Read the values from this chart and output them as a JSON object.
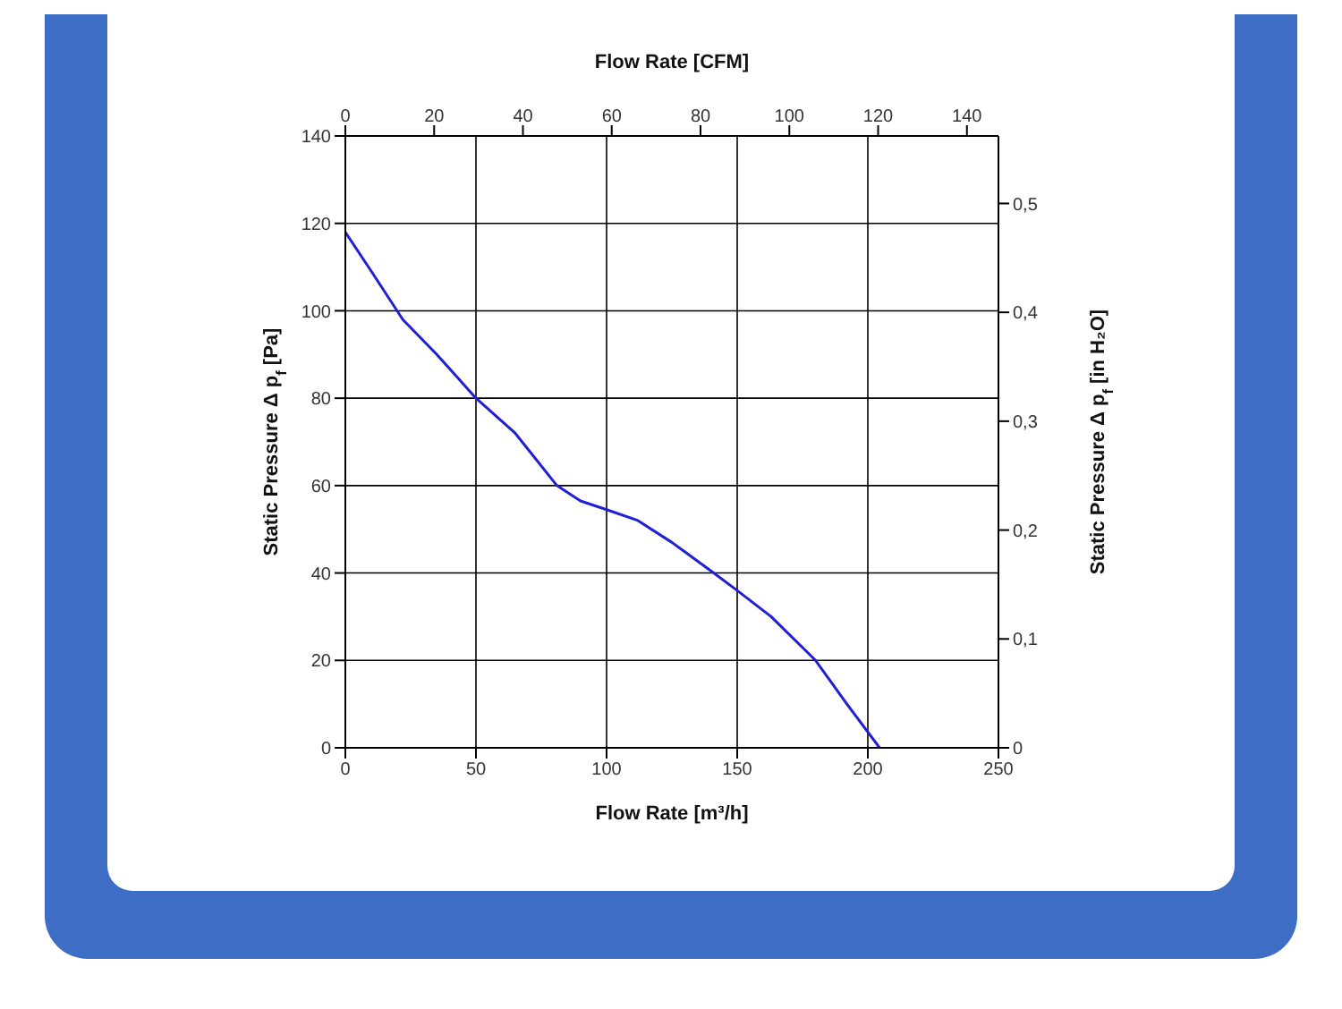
{
  "chart_data": {
    "type": "line",
    "xlabel": "Flow Rate [m³/h]",
    "ylabel": "Static Pressure Δ p$_{f}$ [Pa]",
    "y2label": "Static Pressure Δ p$_{f}$ [in H₂O]",
    "x2label": "Flow Rate [CFM]",
    "x": [
      0,
      10,
      22,
      35,
      50,
      65,
      81,
      90,
      100,
      112,
      125,
      141,
      150,
      163,
      180,
      192,
      204.5
    ],
    "series": [
      {
        "color": "#1f1fd6",
        "values": [
          118,
          109,
          98,
          90,
          80,
          72,
          60,
          56.5,
          54.5,
          52,
          47,
          40,
          36,
          30,
          20,
          10,
          0
        ]
      }
    ],
    "xlim": [
      0,
      250
    ],
    "xticks": [
      0,
      50,
      100,
      150,
      200,
      250
    ],
    "ylim": [
      0,
      140
    ],
    "yticks": [
      0,
      20,
      40,
      60,
      80,
      100,
      120,
      140
    ],
    "x2lim": [
      0,
      147.1
    ],
    "x2ticks": [
      0,
      20,
      40,
      60,
      80,
      100,
      120,
      140
    ],
    "y2lim": [
      0,
      0.562
    ],
    "y2ticks": [
      {
        "value": 0,
        "label": "0"
      },
      {
        "value": 0.1,
        "label": "0,1"
      },
      {
        "value": 0.2,
        "label": "0,2"
      },
      {
        "value": 0.3,
        "label": "0,3"
      },
      {
        "value": 0.4,
        "label": "0,4"
      },
      {
        "value": 0.5,
        "label": "0,5"
      }
    ],
    "grid": true,
    "legend": false,
    "marker": "none",
    "line_style": "solid"
  }
}
